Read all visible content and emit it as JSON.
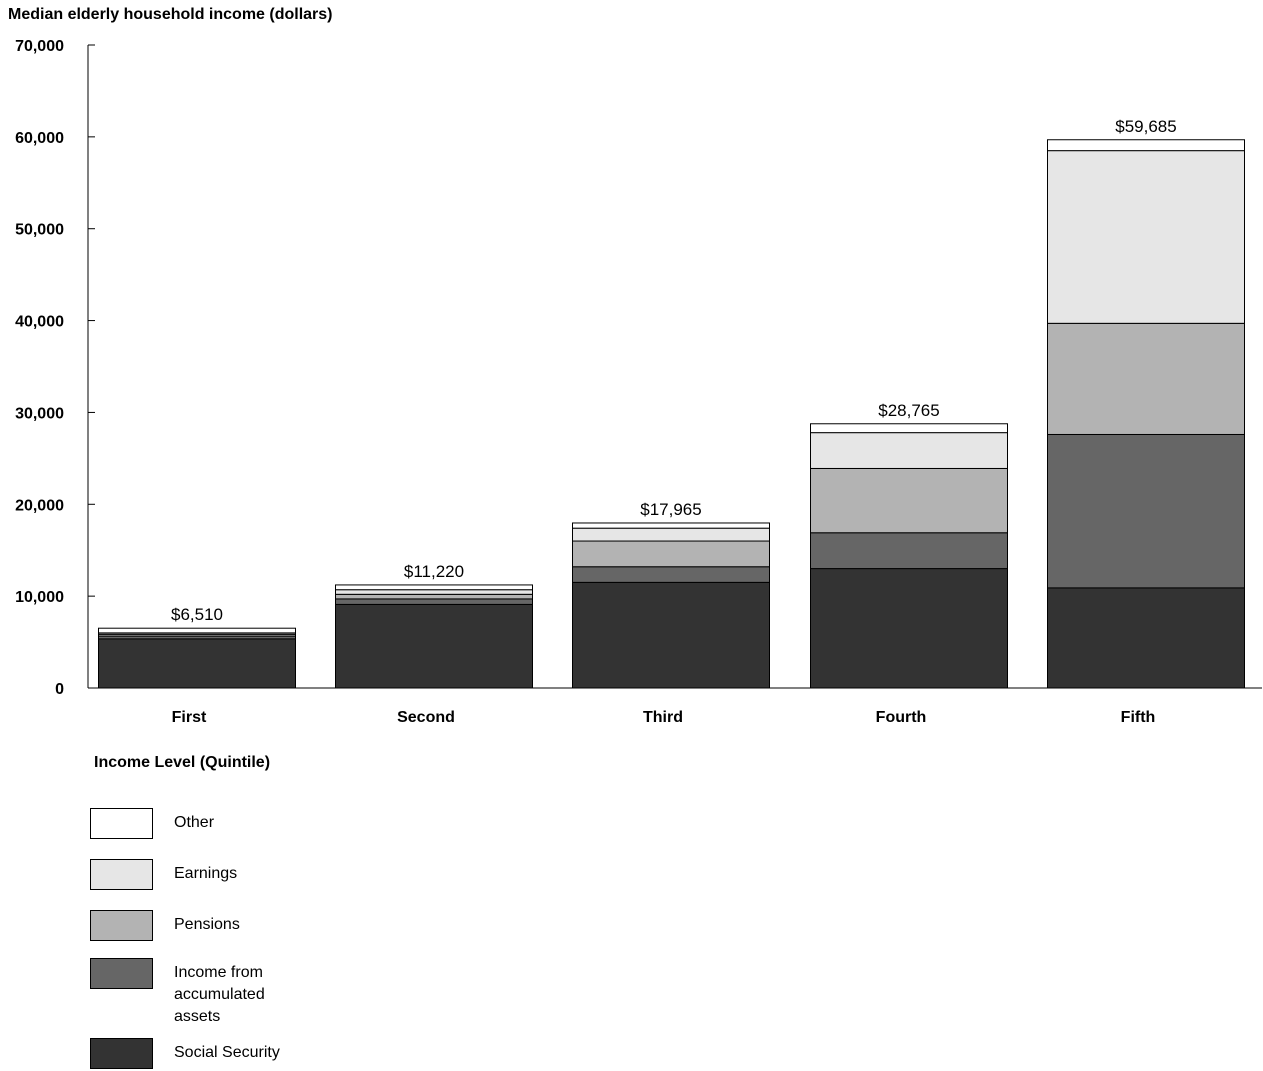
{
  "chart_data": {
    "type": "bar",
    "stacked": true,
    "ylabel": "Median elderly household income (dollars)",
    "xlabel": "Income Level (Quintile)",
    "categories": [
      "First",
      "Second",
      "Third",
      "Fourth",
      "Fifth"
    ],
    "ylim": [
      0,
      70000
    ],
    "yticks": [
      0,
      10000,
      20000,
      30000,
      40000,
      50000,
      60000,
      70000
    ],
    "ytick_labels": [
      "0",
      "10,000",
      "20,000",
      "30,000",
      "40,000",
      "50,000",
      "60,000",
      "70,000"
    ],
    "totals": [
      6510,
      11220,
      17965,
      28765,
      59685
    ],
    "total_labels": [
      "$6,510",
      "$11,220",
      "$17,965",
      "$28,765",
      "$59,685"
    ],
    "series": [
      {
        "name": "Social Security",
        "color": "#333333",
        "values": [
          5350,
          9100,
          11500,
          13000,
          10900
        ]
      },
      {
        "name": "Income from accumulated assets",
        "color": "#666666",
        "values": [
          300,
          600,
          1700,
          3900,
          16700
        ]
      },
      {
        "name": "Pensions",
        "color": "#b3b3b3",
        "values": [
          200,
          500,
          2800,
          7000,
          12100
        ]
      },
      {
        "name": "Earnings",
        "color": "#e6e6e6",
        "values": [
          150,
          500,
          1400,
          3900,
          18800
        ]
      },
      {
        "name": "Other",
        "color": "#ffffff",
        "values": [
          510,
          520,
          565,
          965,
          1185
        ]
      }
    ],
    "legend_order": [
      "Other",
      "Earnings",
      "Pensions",
      "Income from accumulated assets",
      "Social Security"
    ],
    "legend_position": "bottom-left",
    "grid": false
  }
}
